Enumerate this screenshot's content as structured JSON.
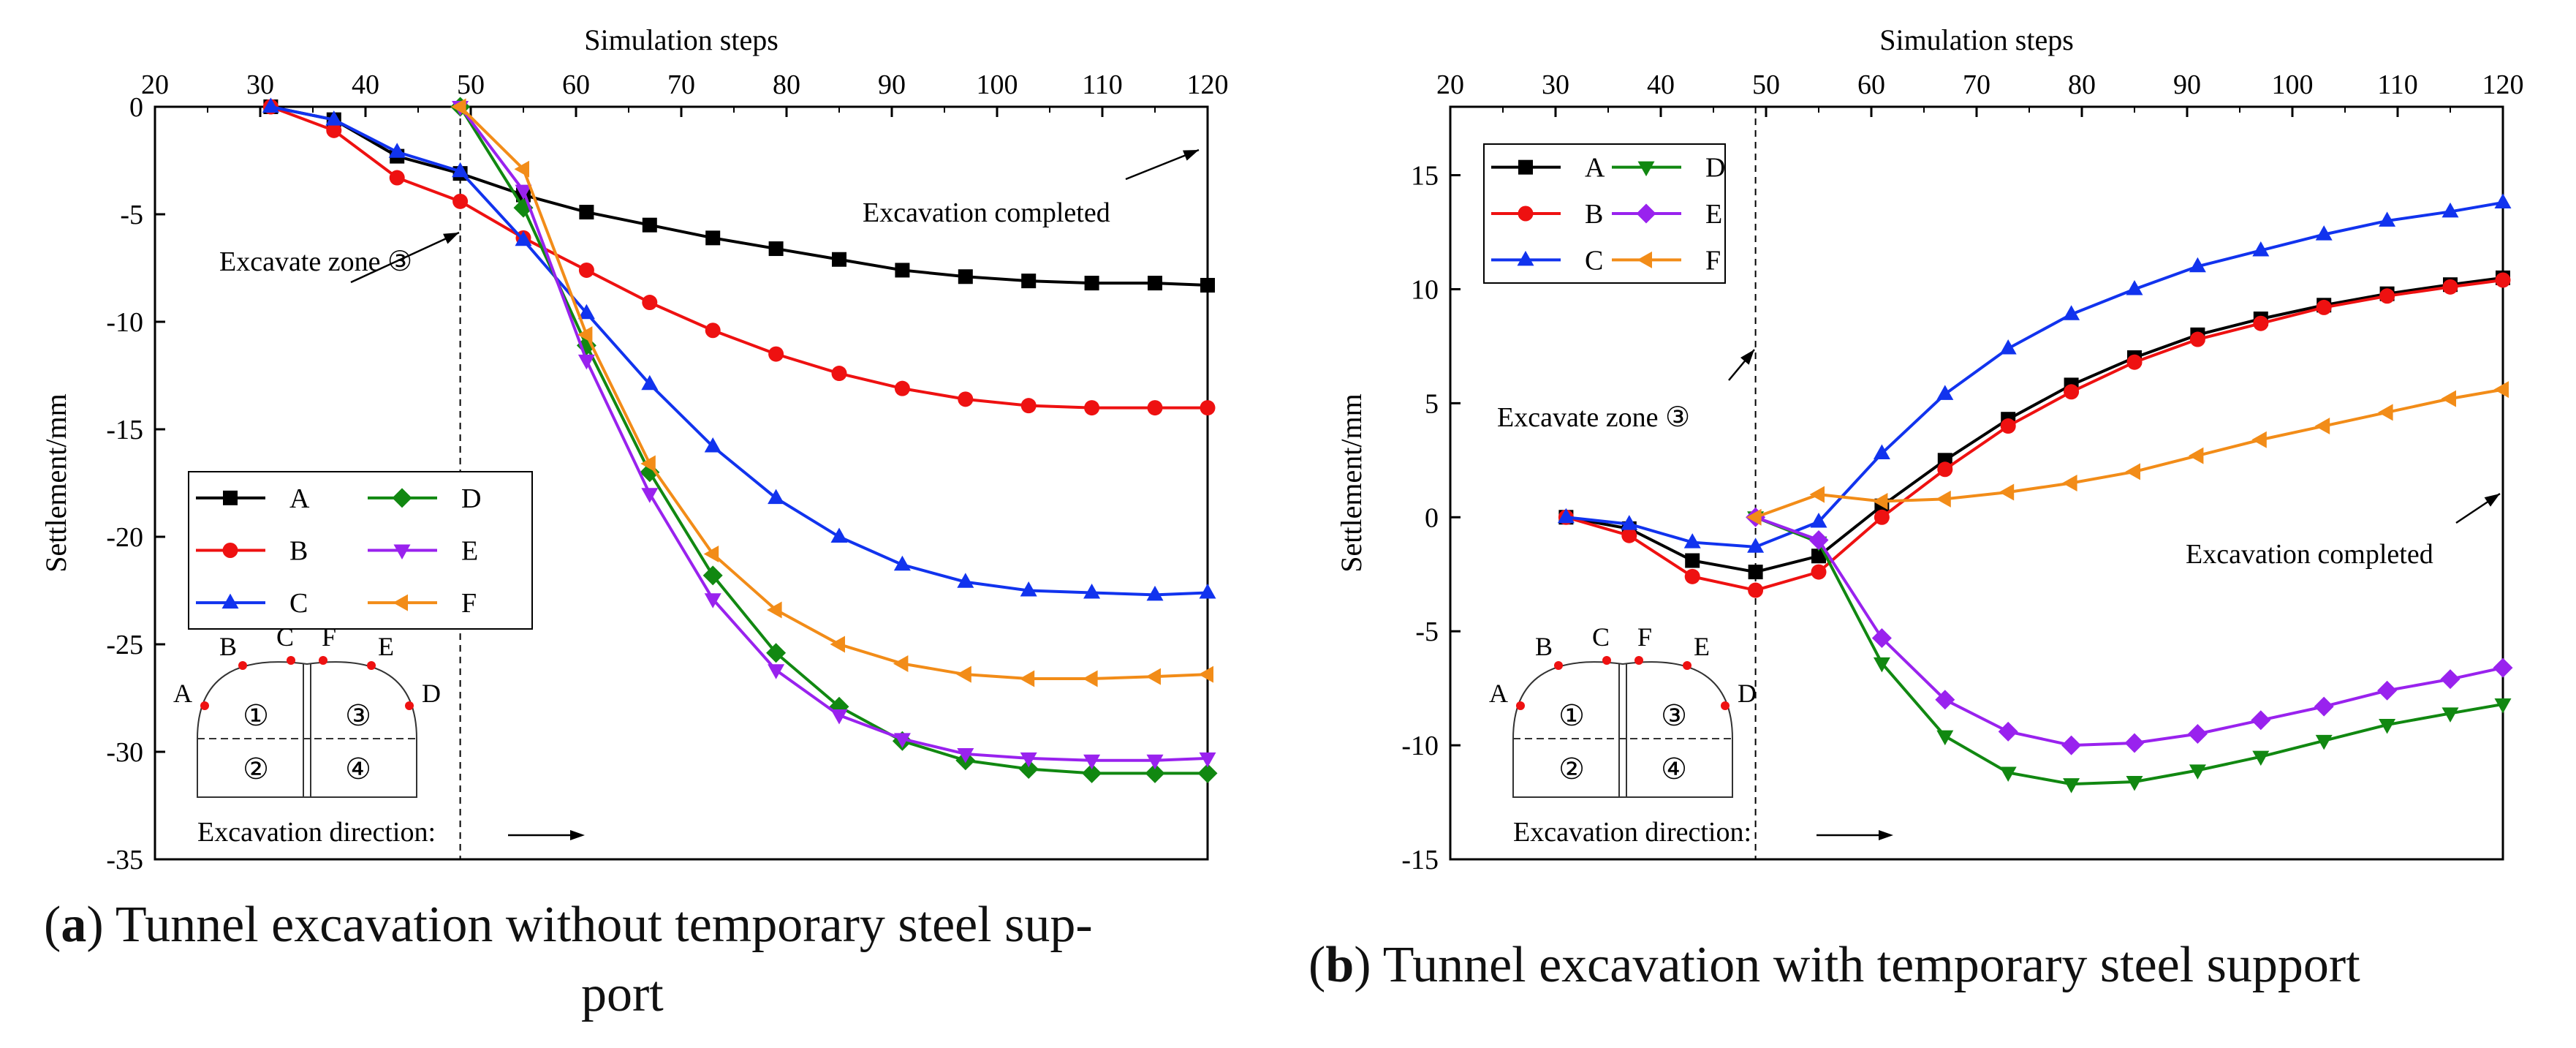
{
  "charts": [
    {
      "type": "line",
      "xlabel": "Simulation steps",
      "ylabel": "Settlement/mm",
      "xlim": [
        20,
        120
      ],
      "ylim": [
        -35,
        0
      ],
      "xticks": [
        "20",
        "30",
        "40",
        "50",
        "60",
        "70",
        "80",
        "90",
        "100",
        "110",
        "120"
      ],
      "yticks": [
        "0",
        "-5",
        "-10",
        "-15",
        "-20",
        "-25",
        "-30",
        "-35"
      ],
      "x": [
        31,
        37,
        43,
        49,
        55,
        61,
        67,
        73,
        79,
        85,
        91,
        97,
        103,
        109,
        115,
        120
      ],
      "series": [
        {
          "name": "A",
          "color": "#000000",
          "marker": "square",
          "start": 0,
          "values": [
            0,
            -0.6,
            -2.3,
            -3.1,
            -4.1,
            -4.9,
            -5.5,
            -6.1,
            -6.6,
            -7.1,
            -7.6,
            -7.9,
            -8.1,
            -8.2,
            -8.2,
            -8.3
          ]
        },
        {
          "name": "B",
          "color": "#ee1111",
          "marker": "circle",
          "start": 0,
          "values": [
            0,
            -1.1,
            -3.3,
            -4.4,
            -6.1,
            -7.6,
            -9.1,
            -10.4,
            -11.5,
            -12.4,
            -13.1,
            -13.6,
            -13.9,
            -14.0,
            -14.0,
            -14.0
          ]
        },
        {
          "name": "C",
          "color": "#1133ee",
          "marker": "triangle-up",
          "start": 0,
          "values": [
            0,
            -0.6,
            -2.1,
            -3.0,
            -6.2,
            -9.6,
            -12.9,
            -15.8,
            -18.2,
            -20.0,
            -21.3,
            -22.1,
            -22.5,
            -22.6,
            -22.7,
            -22.6
          ]
        },
        {
          "name": "D",
          "color": "#118811",
          "marker": "diamond",
          "start": 3,
          "values": [
            null,
            null,
            null,
            0,
            -4.7,
            -11.1,
            -17.0,
            -21.8,
            -25.4,
            -27.9,
            -29.5,
            -30.4,
            -30.8,
            -31.0,
            -31.0,
            -31.0
          ]
        },
        {
          "name": "E",
          "color": "#9922ee",
          "marker": "triangle-down",
          "start": 3,
          "values": [
            null,
            null,
            null,
            0,
            -3.9,
            -11.8,
            -18.0,
            -22.9,
            -26.2,
            -28.3,
            -29.4,
            -30.1,
            -30.3,
            -30.4,
            -30.4,
            -30.3
          ]
        },
        {
          "name": "F",
          "color": "#f28c18",
          "marker": "triangle-left",
          "start": 3,
          "values": [
            null,
            null,
            null,
            0,
            -2.9,
            -10.6,
            -16.6,
            -20.8,
            -23.4,
            -25.0,
            -25.9,
            -26.4,
            -26.6,
            -26.6,
            -26.5,
            -26.4
          ]
        }
      ],
      "annotations": [
        {
          "text": "Excavate zone ③"
        },
        {
          "text": "Excavation completed"
        }
      ],
      "tunnel_labels": {
        "points": [
          "A",
          "B",
          "C",
          "F",
          "E",
          "D"
        ],
        "zones": [
          "①",
          "③",
          "②",
          "④"
        ]
      },
      "excavation_direction": "Excavation direction:"
    },
    {
      "type": "line",
      "xlabel": "Simulation steps",
      "ylabel": "Settlement/mm",
      "xlim": [
        20,
        120
      ],
      "ylim": [
        -15,
        18
      ],
      "xticks": [
        "20",
        "30",
        "40",
        "50",
        "60",
        "70",
        "80",
        "90",
        "100",
        "110",
        "120"
      ],
      "yticks": [
        "15",
        "10",
        "5",
        "0",
        "-5",
        "-10",
        "-15"
      ],
      "x": [
        31,
        37,
        43,
        49,
        55,
        61,
        67,
        73,
        79,
        85,
        91,
        97,
        103,
        109,
        115,
        120
      ],
      "series": [
        {
          "name": "A",
          "color": "#000000",
          "marker": "square",
          "start": 0,
          "values": [
            0,
            -0.5,
            -1.9,
            -2.4,
            -1.7,
            0.5,
            2.5,
            4.3,
            5.8,
            7.0,
            8.0,
            8.7,
            9.3,
            9.8,
            10.2,
            10.5
          ]
        },
        {
          "name": "B",
          "color": "#ee1111",
          "marker": "circle",
          "start": 0,
          "values": [
            0,
            -0.8,
            -2.6,
            -3.2,
            -2.4,
            0,
            2.1,
            4.0,
            5.5,
            6.8,
            7.8,
            8.5,
            9.2,
            9.7,
            10.1,
            10.4
          ]
        },
        {
          "name": "C",
          "color": "#1133ee",
          "marker": "triangle-up",
          "start": 0,
          "values": [
            0,
            -0.3,
            -1.1,
            -1.3,
            -0.2,
            2.8,
            5.4,
            7.4,
            8.9,
            10.0,
            11.0,
            11.7,
            12.4,
            13.0,
            13.4,
            13.8
          ]
        },
        {
          "name": "D",
          "color": "#118811",
          "marker": "triangle-down",
          "start": 3,
          "values": [
            null,
            null,
            null,
            0,
            -1.1,
            -6.4,
            -9.6,
            -11.2,
            -11.7,
            -11.6,
            -11.1,
            -10.5,
            -9.8,
            -9.1,
            -8.6,
            -8.2
          ]
        },
        {
          "name": "E",
          "color": "#9922ee",
          "marker": "diamond",
          "start": 3,
          "values": [
            null,
            null,
            null,
            0,
            -1.0,
            -5.3,
            -8.0,
            -9.4,
            -10.0,
            -9.9,
            -9.5,
            -8.9,
            -8.3,
            -7.6,
            -7.1,
            -6.6
          ]
        },
        {
          "name": "F",
          "color": "#f28c18",
          "marker": "triangle-left",
          "start": 3,
          "values": [
            null,
            null,
            null,
            0,
            1.0,
            0.7,
            0.8,
            1.1,
            1.5,
            2.0,
            2.7,
            3.4,
            4.0,
            4.6,
            5.2,
            5.6
          ]
        }
      ],
      "annotations": [
        {
          "text": "Excavate zone ③"
        },
        {
          "text": "Excavation completed"
        }
      ],
      "tunnel_labels": {
        "points": [
          "A",
          "B",
          "C",
          "F",
          "E",
          "D"
        ],
        "zones": [
          "①",
          "③",
          "②",
          "④"
        ]
      },
      "excavation_direction": "Excavation direction:"
    }
  ],
  "captions": [
    {
      "label": "a",
      "line1": " Tunnel excavation without temporary steel sup-",
      "line2": "port"
    },
    {
      "label": "b",
      "line1": " Tunnel excavation with temporary steel support"
    }
  ]
}
